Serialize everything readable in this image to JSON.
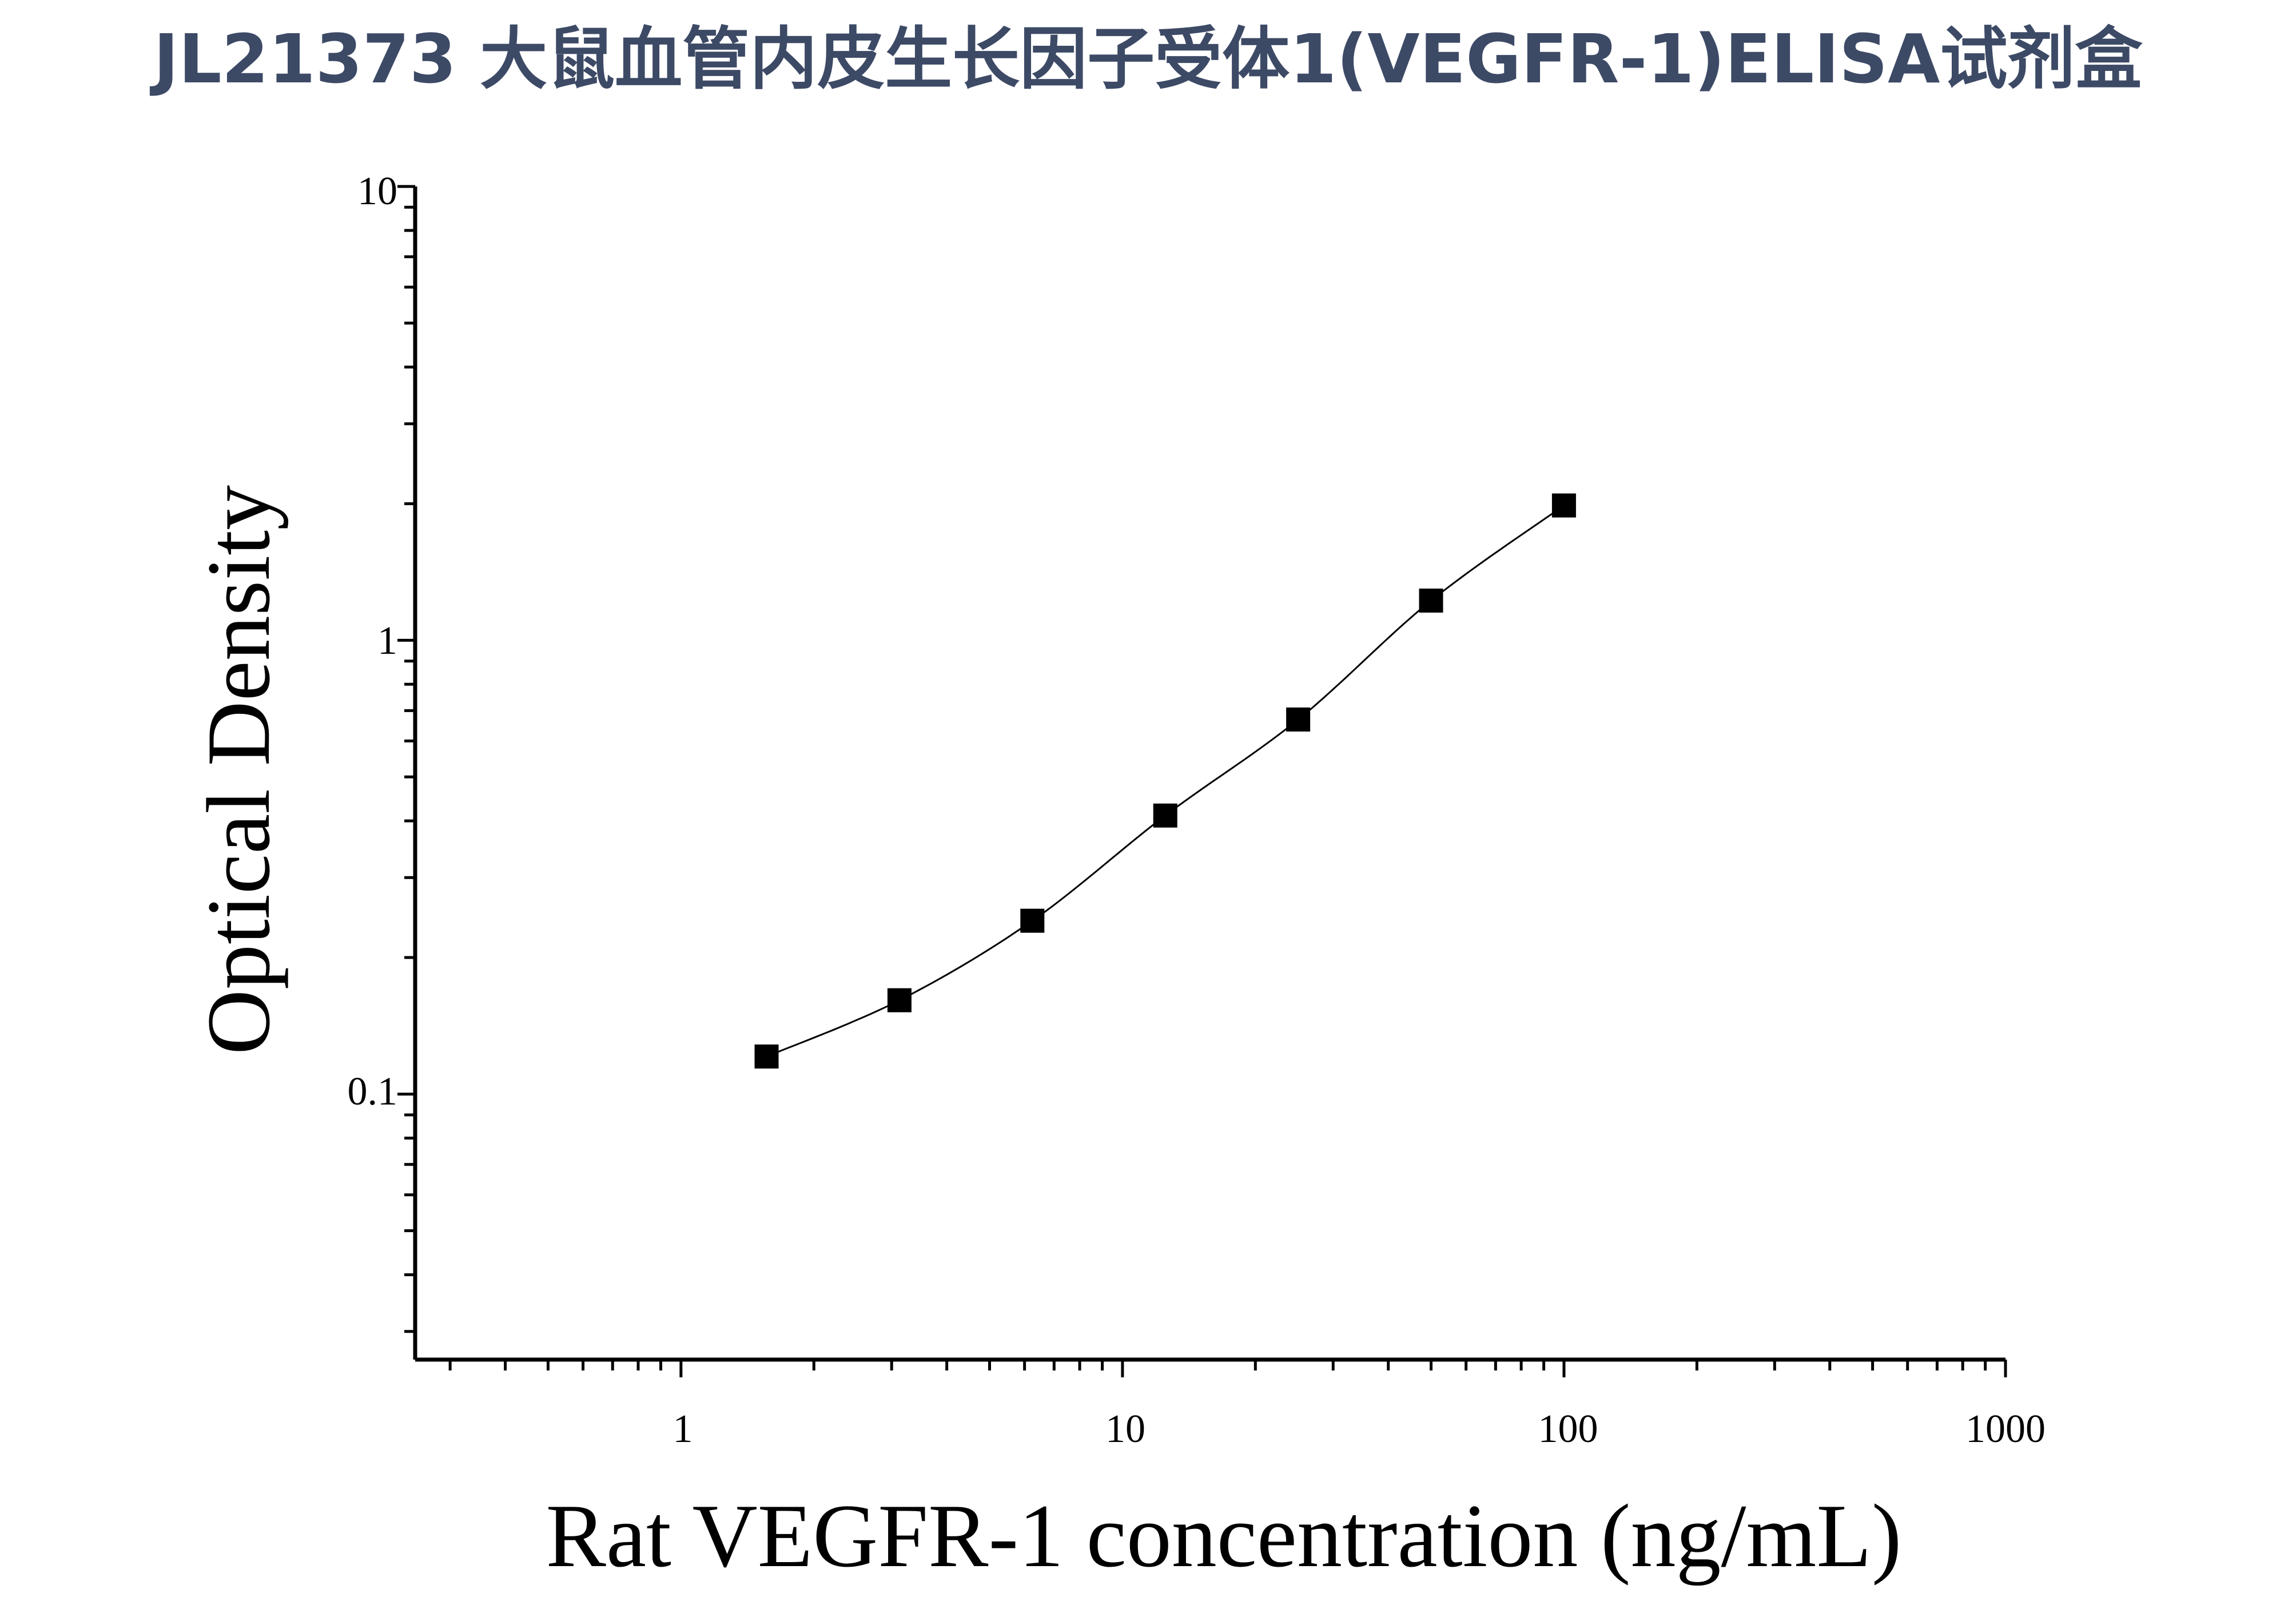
{
  "chart_data": {
    "type": "scatter",
    "title": "JL21373 大鼠血管内皮生长因子受体1(VEGFR-1)ELISA试剂盒",
    "xlabel": "Rat VEGFR-1 concentration (ng/mL)",
    "ylabel": "Optical Density",
    "x_scale": "log",
    "y_scale": "log",
    "xlim": [
      0.25,
      1000
    ],
    "ylim": [
      0.026,
      10
    ],
    "x_tick_labels": [
      "1",
      "10",
      "100",
      "1000"
    ],
    "y_tick_labels": [
      "0.1",
      "1",
      "10"
    ],
    "grid": false,
    "legend": "none",
    "series": [
      {
        "marker": "square",
        "color": "#000000",
        "fit_line": true,
        "x": [
          1.5625,
          3.125,
          6.25,
          12.5,
          25,
          50,
          100
        ],
        "y": [
          0.121,
          0.161,
          0.241,
          0.411,
          0.669,
          1.223,
          1.982
        ]
      }
    ]
  }
}
